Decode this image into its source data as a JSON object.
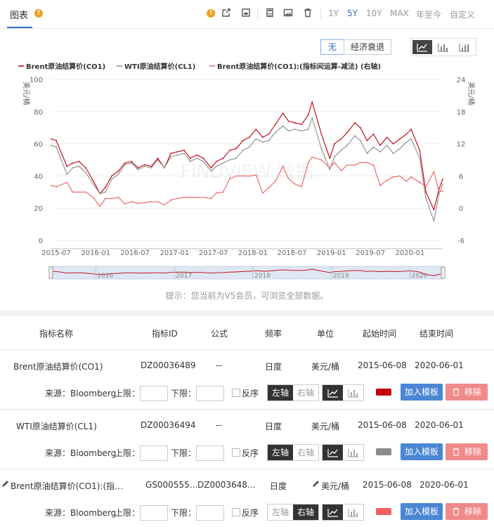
{
  "header": {
    "tab_label": "图表",
    "ranges": [
      "1Y",
      "5Y",
      "10Y",
      "MAX",
      "年至今",
      "自定义"
    ],
    "active_range": "5Y"
  },
  "controls": {
    "recession_none": "无",
    "recession_label": "经济衰退"
  },
  "hint": "提示：您当前为V5会员，可浏览全部数据。",
  "colors": {
    "accent": "#2c6fc3",
    "brent": "#c0000b",
    "wti": "#8c8c8c",
    "diff": "#f06060"
  },
  "chart_data": {
    "type": "line",
    "x": [
      "2015-06-08",
      "2015-07-01",
      "2015-08-20",
      "2015-09-15",
      "2015-10-15",
      "2015-11-15",
      "2015-12-20",
      "2016-01-20",
      "2016-02-15",
      "2016-03-15",
      "2016-04-15",
      "2016-05-15",
      "2016-06-15",
      "2016-07-15",
      "2016-08-15",
      "2016-09-15",
      "2016-10-15",
      "2016-11-15",
      "2016-12-15",
      "2017-01-15",
      "2017-02-15",
      "2017-03-15",
      "2017-04-15",
      "2017-05-15",
      "2017-06-20",
      "2017-07-15",
      "2017-08-15",
      "2017-09-15",
      "2017-10-15",
      "2017-11-15",
      "2017-12-15",
      "2018-01-15",
      "2018-02-15",
      "2018-03-15",
      "2018-04-15",
      "2018-05-20",
      "2018-06-15",
      "2018-07-15",
      "2018-08-15",
      "2018-09-15",
      "2018-10-03",
      "2018-11-15",
      "2018-12-24",
      "2019-01-15",
      "2019-02-15",
      "2019-03-15",
      "2019-04-20",
      "2019-05-15",
      "2019-06-15",
      "2019-07-15",
      "2019-08-15",
      "2019-09-16",
      "2019-10-15",
      "2019-11-15",
      "2019-12-15",
      "2020-01-06",
      "2020-02-15",
      "2020-03-15",
      "2020-04-21",
      "2020-05-15",
      "2020-06-01"
    ],
    "series": [
      {
        "name": "Brent原油结算价(CO1)",
        "axis": "left",
        "values": [
          63,
          62,
          46,
          48,
          49,
          45,
          37,
          29,
          33,
          40,
          43,
          48,
          49,
          45,
          47,
          46,
          51,
          45,
          54,
          55,
          56,
          51,
          53,
          51,
          45,
          49,
          51,
          56,
          57,
          62,
          64,
          69,
          64,
          66,
          72,
          79,
          74,
          73,
          72,
          78,
          86,
          66,
          51,
          60,
          63,
          67,
          73,
          70,
          62,
          66,
          59,
          64,
          60,
          63,
          66,
          69,
          56,
          30,
          19,
          32,
          38
        ]
      },
      {
        "name": "WTI原油结算价(CL1)",
        "axis": "left",
        "values": [
          59,
          58,
          41,
          45,
          46,
          42,
          35,
          29,
          30,
          38,
          41,
          47,
          48,
          44,
          46,
          45,
          50,
          45,
          52,
          53,
          54,
          49,
          51,
          49,
          43,
          46,
          48,
          50,
          51,
          56,
          58,
          63,
          61,
          62,
          67,
          71,
          68,
          69,
          68,
          69,
          76,
          57,
          44,
          52,
          56,
          59,
          65,
          62,
          54,
          58,
          55,
          59,
          54,
          57,
          61,
          63,
          51,
          26,
          12,
          29,
          35
        ]
      },
      {
        "name": "Brent原油结算价(CO1):(指标间运算-减法) (右轴)",
        "axis": "right",
        "values": [
          4.2,
          4.0,
          4.8,
          3.0,
          3.0,
          3.0,
          2.0,
          0.3,
          1.8,
          1.8,
          2.0,
          0.8,
          1.2,
          0.9,
          1.0,
          1.2,
          1.2,
          0.6,
          1.5,
          1.8,
          2.0,
          2.0,
          2.0,
          2.0,
          1.8,
          2.8,
          3.0,
          5.5,
          6.0,
          6.0,
          6.0,
          6.2,
          2.8,
          3.8,
          5.0,
          7.8,
          5.5,
          4.5,
          4.0,
          8.5,
          9.5,
          9.0,
          7.5,
          8.5,
          7.0,
          8.0,
          8.0,
          8.5,
          8.5,
          8.0,
          4.2,
          5.2,
          5.8,
          6.0,
          5.0,
          5.8,
          4.8,
          4.0,
          6.8,
          3.0,
          3.2
        ]
      }
    ],
    "y_left": {
      "label": "美元/桶",
      "ylim": [
        0,
        100
      ],
      "ticks": [
        0,
        20,
        40,
        60,
        80,
        100
      ]
    },
    "y_right": {
      "label": "美元/桶",
      "ylim": [
        -6,
        24
      ],
      "ticks": [
        -6,
        0,
        6,
        12,
        18,
        24
      ]
    },
    "x_ticks": [
      "2015-07",
      "2016-01",
      "2016-07",
      "2017-01",
      "2017-07",
      "2018-01",
      "2018-07",
      "2019-01",
      "2019-07",
      "2020-01"
    ],
    "navigator_labels": [
      "2016",
      "2017",
      "2018",
      "2019",
      "2020"
    ],
    "legend_position": "top-left",
    "watermark": "FINDVIEW 数据"
  },
  "table": {
    "headers": [
      "指标名称",
      "指标ID",
      "公式",
      "频率",
      "单位",
      "起始时间",
      "结束时间"
    ],
    "source_label": "来源：Bloomberg",
    "upper_label": "上限：",
    "lower_label": "下限：",
    "reverse_label": "反序",
    "left_axis_label": "左轴",
    "right_axis_label": "右轴",
    "add_label": "加入模板",
    "remove_label": "移除",
    "rows": [
      {
        "name": "Brent原油结算价(CO1)",
        "id": "DZ00036489",
        "formula": "--",
        "freq": "日度",
        "unit": "美元/桶",
        "start": "2015-06-08",
        "end": "2020-06-01",
        "color": "#c0000b",
        "axis": "left"
      },
      {
        "name": "WTI原油结算价(CL1)",
        "id": "DZ00036494",
        "formula": "--",
        "freq": "日度",
        "unit": "美元/桶",
        "start": "2015-06-08",
        "end": "2020-06-01",
        "color": "#8c8c8c",
        "axis": "left"
      },
      {
        "name": "Brent原油结算价(CO1):(指…",
        "id": "GS000555…",
        "formula": "DZ0003648…",
        "freq": "日度",
        "unit": "美元/桶",
        "start": "2015-06-08",
        "end": "2020-06-01",
        "color": "#f06060",
        "axis": "right"
      }
    ]
  }
}
